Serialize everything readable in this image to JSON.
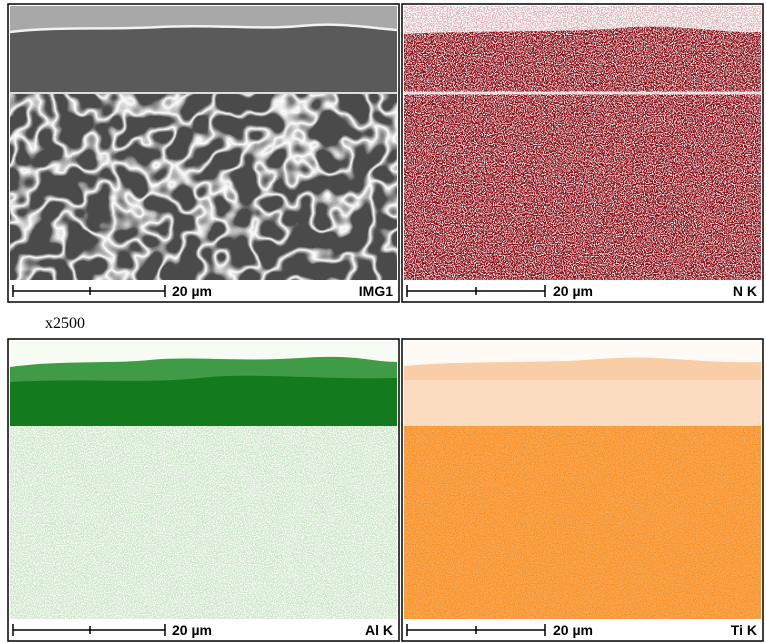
{
  "magnification": "x2500",
  "panels": [
    {
      "label": "IMG1",
      "scale": "20 µm"
    },
    {
      "label": "N K",
      "scale": "20 µm"
    },
    {
      "label": "Al K",
      "scale": "20 µm"
    },
    {
      "label": "Ti K",
      "scale": "20 µm"
    }
  ]
}
